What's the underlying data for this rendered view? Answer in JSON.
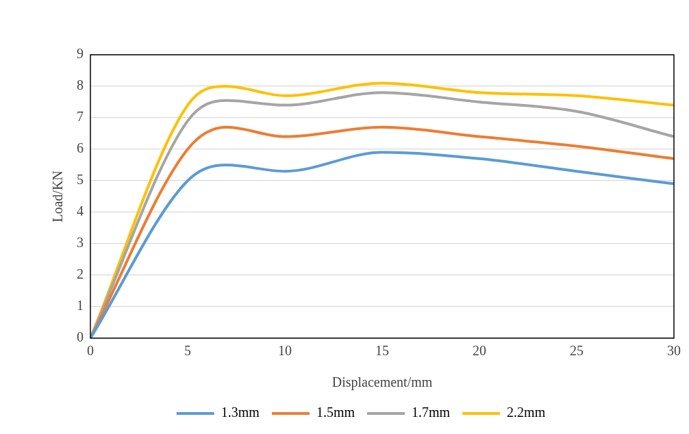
{
  "chart_data": {
    "type": "line",
    "xlabel": "Displacement/mm",
    "ylabel": "Load/KN",
    "x": [
      0,
      5,
      7,
      10,
      15,
      20,
      25,
      30
    ],
    "series": [
      {
        "name": "1.3mm",
        "color": "#5b9bd5",
        "values": [
          0,
          5.0,
          5.5,
          5.3,
          5.9,
          5.7,
          5.3,
          4.9
        ]
      },
      {
        "name": "1.5mm",
        "color": "#ed7d31",
        "values": [
          0,
          6.0,
          6.7,
          6.4,
          6.7,
          6.4,
          6.1,
          5.7
        ]
      },
      {
        "name": "1.7mm",
        "color": "#a5a5a5",
        "values": [
          0,
          6.9,
          7.55,
          7.4,
          7.8,
          7.5,
          7.2,
          6.4
        ]
      },
      {
        "name": "2.2mm",
        "color": "#ffc000",
        "values": [
          0,
          7.4,
          8.0,
          7.7,
          8.1,
          7.8,
          7.7,
          7.4
        ]
      }
    ],
    "xlim": [
      0,
      30
    ],
    "xticks": [
      0,
      5,
      10,
      15,
      20,
      25,
      30
    ],
    "ylim": [
      0,
      9
    ],
    "yticks": [
      0,
      1,
      2,
      3,
      4,
      5,
      6,
      7,
      8,
      9
    ],
    "grid": "y",
    "legend": "bottom",
    "marker": "none",
    "line_style": "solid"
  }
}
